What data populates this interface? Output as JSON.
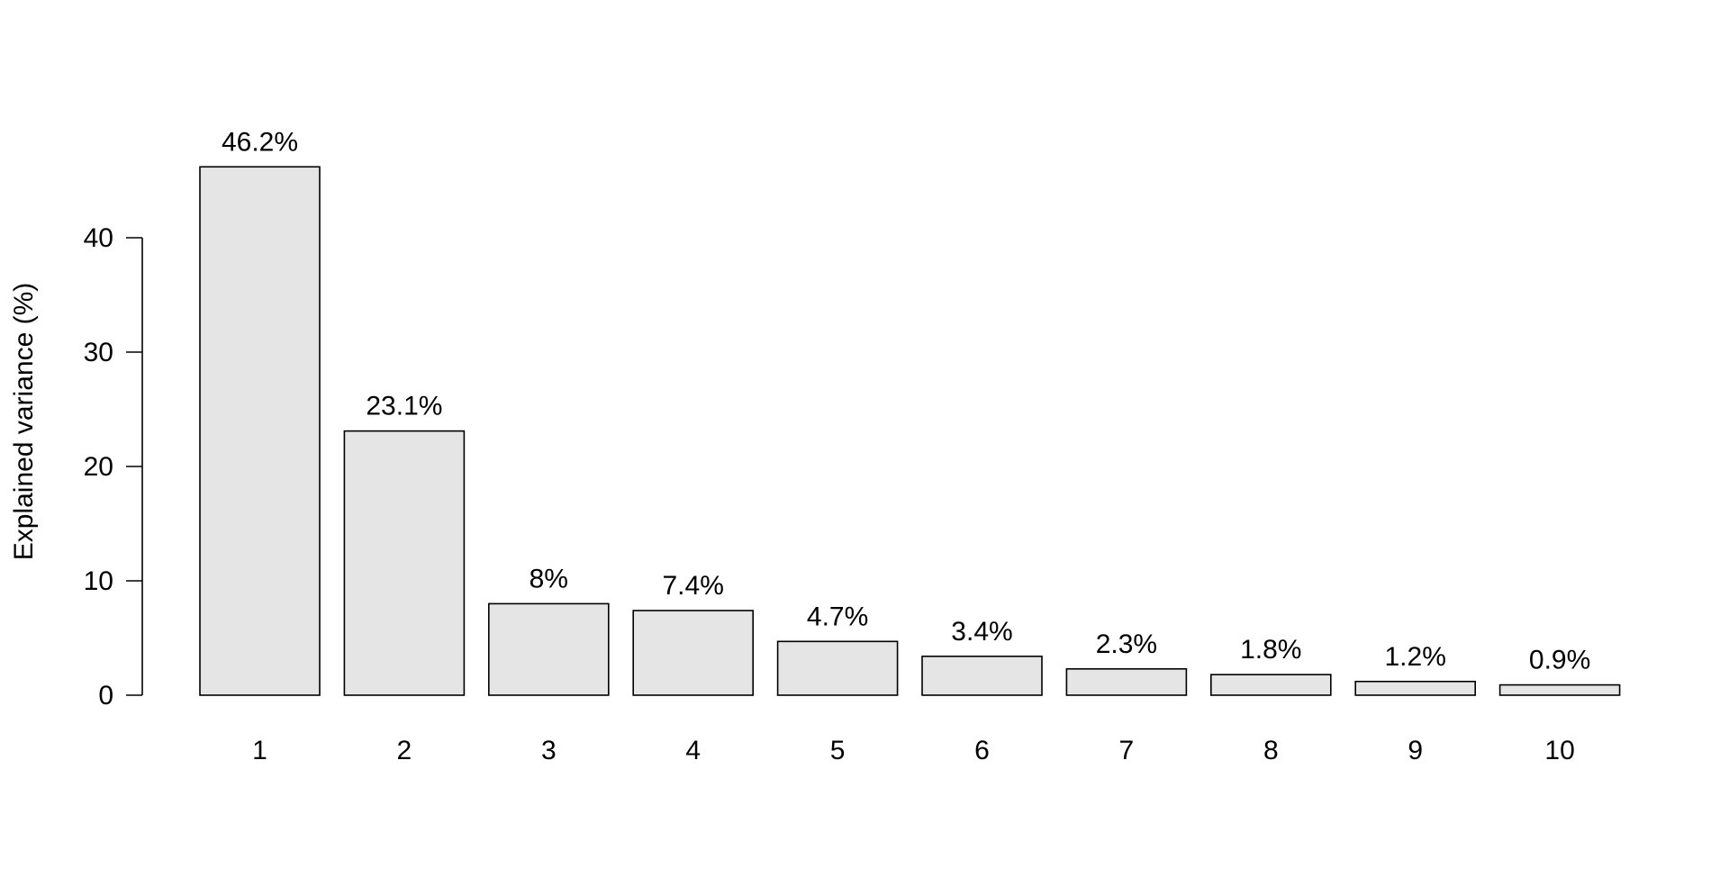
{
  "chart_data": {
    "type": "bar",
    "title": "",
    "xlabel": "",
    "ylabel": "Explained variance (%)",
    "categories": [
      "1",
      "2",
      "3",
      "4",
      "5",
      "6",
      "7",
      "8",
      "9",
      "10"
    ],
    "values": [
      46.2,
      23.1,
      8.0,
      7.4,
      4.7,
      3.4,
      2.3,
      1.8,
      1.2,
      0.9
    ],
    "value_labels": [
      "46.2%",
      "23.1%",
      "8%",
      "7.4%",
      "4.7%",
      "3.4%",
      "2.3%",
      "1.8%",
      "1.2%",
      "0.9%"
    ],
    "ylim": [
      0,
      46.2
    ],
    "yticks": [
      0,
      10,
      20,
      30,
      40
    ],
    "ytick_labels": [
      "0",
      "10",
      "20",
      "30",
      "40"
    ],
    "grid": false,
    "legend": "none",
    "bar_fill": "#e5e5e5",
    "bar_stroke": "#000000"
  }
}
